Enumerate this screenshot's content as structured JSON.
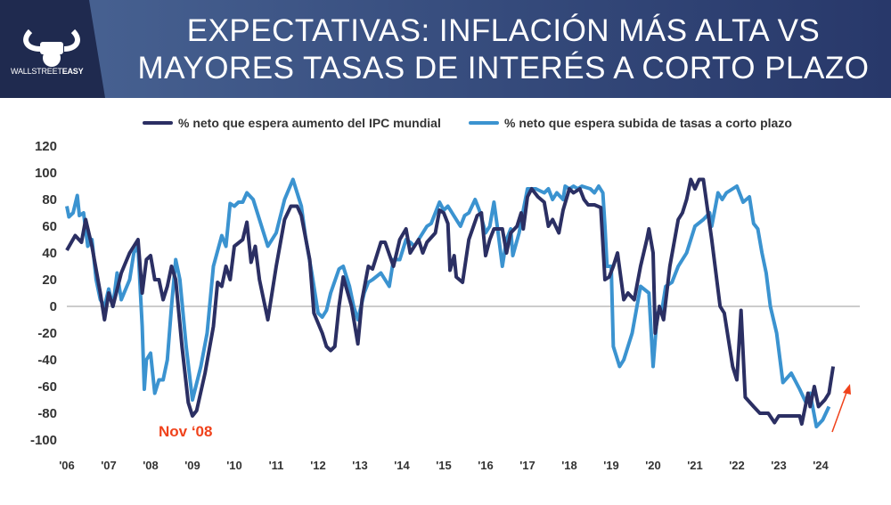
{
  "header": {
    "title_line1": "EXPECTATIVAS: INFLACIÓN MÁS ALTA VS",
    "title_line2": "MAYORES TASAS DE INTERÉS A CORTO PLAZO",
    "logo_text_light": "WALLSTREET",
    "logo_text_bold": "EASY"
  },
  "colors": {
    "ipc": "#2b2f63",
    "tasas": "#3b93d0",
    "annotation": "#f0421b"
  },
  "chart_data": {
    "type": "line",
    "title": "EXPECTATIVAS: INFLACIÓN MÁS ALTA VS MAYORES TASAS DE INTERÉS A CORTO PLAZO",
    "xlabel": "",
    "ylabel": "",
    "ylim": [
      -100,
      120
    ],
    "xlim": [
      2006,
      2025
    ],
    "yticks": [
      "120",
      "100",
      "80",
      "60",
      "40",
      "20",
      "0",
      "-20",
      "-40",
      "-60",
      "-80",
      "-100"
    ],
    "xticks": [
      "'06",
      "'07",
      "'08",
      "'09",
      "'10",
      "'11",
      "'12",
      "'13",
      "'14",
      "'15",
      "'16",
      "'17",
      "'18",
      "'19",
      "'20",
      "'21",
      "'22",
      "'23",
      "'24"
    ],
    "annotation": "Nov ‘08",
    "legend_position": "top",
    "series": [
      {
        "name": "% neto que espera aumento del IPC mundial",
        "points": [
          [
            2006.0,
            42
          ],
          [
            2006.2,
            53
          ],
          [
            2006.35,
            48
          ],
          [
            2006.45,
            65
          ],
          [
            2006.6,
            45
          ],
          [
            2006.8,
            10
          ],
          [
            2006.9,
            -10
          ],
          [
            2007.0,
            10
          ],
          [
            2007.1,
            0
          ],
          [
            2007.3,
            25
          ],
          [
            2007.5,
            40
          ],
          [
            2007.7,
            50
          ],
          [
            2007.8,
            10
          ],
          [
            2007.9,
            35
          ],
          [
            2008.0,
            38
          ],
          [
            2008.1,
            20
          ],
          [
            2008.2,
            20
          ],
          [
            2008.3,
            5
          ],
          [
            2008.4,
            15
          ],
          [
            2008.5,
            30
          ],
          [
            2008.6,
            20
          ],
          [
            2008.75,
            -30
          ],
          [
            2008.9,
            -72
          ],
          [
            2009.0,
            -82
          ],
          [
            2009.1,
            -78
          ],
          [
            2009.3,
            -50
          ],
          [
            2009.5,
            -15
          ],
          [
            2009.6,
            18
          ],
          [
            2009.7,
            15
          ],
          [
            2009.8,
            30
          ],
          [
            2009.9,
            20
          ],
          [
            2010.0,
            45
          ],
          [
            2010.2,
            50
          ],
          [
            2010.3,
            63
          ],
          [
            2010.4,
            33
          ],
          [
            2010.5,
            45
          ],
          [
            2010.6,
            20
          ],
          [
            2010.8,
            -10
          ],
          [
            2011.0,
            30
          ],
          [
            2011.2,
            65
          ],
          [
            2011.35,
            75
          ],
          [
            2011.5,
            75
          ],
          [
            2011.6,
            68
          ],
          [
            2011.8,
            35
          ],
          [
            2011.9,
            -5
          ],
          [
            2012.1,
            -20
          ],
          [
            2012.2,
            -30
          ],
          [
            2012.3,
            -33
          ],
          [
            2012.4,
            -30
          ],
          [
            2012.5,
            0
          ],
          [
            2012.6,
            22
          ],
          [
            2012.8,
            0
          ],
          [
            2012.95,
            -28
          ],
          [
            2013.05,
            5
          ],
          [
            2013.2,
            30
          ],
          [
            2013.3,
            28
          ],
          [
            2013.5,
            48
          ],
          [
            2013.6,
            48
          ],
          [
            2013.8,
            30
          ],
          [
            2013.95,
            50
          ],
          [
            2014.1,
            58
          ],
          [
            2014.2,
            40
          ],
          [
            2014.4,
            50
          ],
          [
            2014.5,
            40
          ],
          [
            2014.6,
            48
          ],
          [
            2014.8,
            55
          ],
          [
            2014.9,
            72
          ],
          [
            2015.0,
            70
          ],
          [
            2015.1,
            62
          ],
          [
            2015.15,
            27
          ],
          [
            2015.25,
            38
          ],
          [
            2015.3,
            22
          ],
          [
            2015.45,
            18
          ],
          [
            2015.6,
            50
          ],
          [
            2015.8,
            68
          ],
          [
            2015.9,
            70
          ],
          [
            2016.0,
            38
          ],
          [
            2016.1,
            50
          ],
          [
            2016.2,
            58
          ],
          [
            2016.4,
            58
          ],
          [
            2016.5,
            40
          ],
          [
            2016.6,
            55
          ],
          [
            2016.75,
            60
          ],
          [
            2016.85,
            70
          ],
          [
            2016.9,
            58
          ],
          [
            2017.0,
            82
          ],
          [
            2017.1,
            88
          ],
          [
            2017.25,
            82
          ],
          [
            2017.4,
            78
          ],
          [
            2017.5,
            60
          ],
          [
            2017.6,
            65
          ],
          [
            2017.75,
            55
          ],
          [
            2017.85,
            72
          ],
          [
            2018.0,
            88
          ],
          [
            2018.1,
            85
          ],
          [
            2018.25,
            88
          ],
          [
            2018.35,
            80
          ],
          [
            2018.45,
            76
          ],
          [
            2018.6,
            76
          ],
          [
            2018.75,
            74
          ],
          [
            2018.85,
            20
          ],
          [
            2018.95,
            22
          ],
          [
            2019.05,
            30
          ],
          [
            2019.15,
            40
          ],
          [
            2019.3,
            5
          ],
          [
            2019.4,
            10
          ],
          [
            2019.55,
            5
          ],
          [
            2019.7,
            30
          ],
          [
            2019.85,
            50
          ],
          [
            2019.9,
            58
          ],
          [
            2020.0,
            40
          ],
          [
            2020.05,
            -20
          ],
          [
            2020.15,
            0
          ],
          [
            2020.25,
            -10
          ],
          [
            2020.4,
            30
          ],
          [
            2020.6,
            65
          ],
          [
            2020.7,
            70
          ],
          [
            2020.8,
            80
          ],
          [
            2020.9,
            95
          ],
          [
            2021.0,
            88
          ],
          [
            2021.1,
            95
          ],
          [
            2021.2,
            95
          ],
          [
            2021.4,
            50
          ],
          [
            2021.6,
            0
          ],
          [
            2021.7,
            -5
          ],
          [
            2021.9,
            -45
          ],
          [
            2022.0,
            -55
          ],
          [
            2022.1,
            -3
          ],
          [
            2022.2,
            -68
          ],
          [
            2022.4,
            -75
          ],
          [
            2022.55,
            -80
          ],
          [
            2022.75,
            -80
          ],
          [
            2022.9,
            -87
          ],
          [
            2023.0,
            -82
          ],
          [
            2023.3,
            -82
          ],
          [
            2023.5,
            -82
          ],
          [
            2023.55,
            -88
          ],
          [
            2023.7,
            -65
          ],
          [
            2023.75,
            -75
          ],
          [
            2023.85,
            -60
          ],
          [
            2023.95,
            -75
          ],
          [
            2024.1,
            -70
          ],
          [
            2024.2,
            -65
          ],
          [
            2024.3,
            -45
          ]
        ]
      },
      {
        "name": "% neto que espera subida de tasas a corto plazo",
        "points": [
          [
            2006.0,
            75
          ],
          [
            2006.05,
            67
          ],
          [
            2006.15,
            70
          ],
          [
            2006.25,
            83
          ],
          [
            2006.3,
            68
          ],
          [
            2006.4,
            70
          ],
          [
            2006.5,
            45
          ],
          [
            2006.6,
            50
          ],
          [
            2006.7,
            20
          ],
          [
            2006.8,
            5
          ],
          [
            2006.9,
            0
          ],
          [
            2007.0,
            13
          ],
          [
            2007.1,
            0
          ],
          [
            2007.2,
            25
          ],
          [
            2007.3,
            5
          ],
          [
            2007.5,
            20
          ],
          [
            2007.6,
            40
          ],
          [
            2007.7,
            45
          ],
          [
            2007.8,
            -15
          ],
          [
            2007.85,
            -62
          ],
          [
            2007.9,
            -40
          ],
          [
            2008.0,
            -35
          ],
          [
            2008.1,
            -65
          ],
          [
            2008.2,
            -55
          ],
          [
            2008.3,
            -55
          ],
          [
            2008.4,
            -40
          ],
          [
            2008.5,
            0
          ],
          [
            2008.6,
            35
          ],
          [
            2008.7,
            20
          ],
          [
            2008.85,
            -30
          ],
          [
            2009.0,
            -70
          ],
          [
            2009.2,
            -45
          ],
          [
            2009.35,
            -20
          ],
          [
            2009.5,
            30
          ],
          [
            2009.7,
            53
          ],
          [
            2009.8,
            45
          ],
          [
            2009.9,
            77
          ],
          [
            2010.0,
            75
          ],
          [
            2010.1,
            78
          ],
          [
            2010.2,
            78
          ],
          [
            2010.3,
            85
          ],
          [
            2010.45,
            80
          ],
          [
            2010.6,
            65
          ],
          [
            2010.8,
            45
          ],
          [
            2011.0,
            55
          ],
          [
            2011.2,
            80
          ],
          [
            2011.4,
            95
          ],
          [
            2011.5,
            85
          ],
          [
            2011.6,
            75
          ],
          [
            2011.7,
            52
          ],
          [
            2011.85,
            25
          ],
          [
            2012.0,
            -5
          ],
          [
            2012.1,
            -8
          ],
          [
            2012.2,
            -3
          ],
          [
            2012.3,
            10
          ],
          [
            2012.5,
            28
          ],
          [
            2012.6,
            30
          ],
          [
            2012.75,
            15
          ],
          [
            2012.85,
            0
          ],
          [
            2012.95,
            -10
          ],
          [
            2013.1,
            10
          ],
          [
            2013.2,
            18
          ],
          [
            2013.3,
            20
          ],
          [
            2013.5,
            25
          ],
          [
            2013.6,
            20
          ],
          [
            2013.7,
            15
          ],
          [
            2013.8,
            35
          ],
          [
            2013.95,
            35
          ],
          [
            2014.1,
            50
          ],
          [
            2014.2,
            48
          ],
          [
            2014.3,
            45
          ],
          [
            2014.5,
            55
          ],
          [
            2014.6,
            60
          ],
          [
            2014.7,
            62
          ],
          [
            2014.8,
            70
          ],
          [
            2014.9,
            78
          ],
          [
            2015.0,
            72
          ],
          [
            2015.1,
            75
          ],
          [
            2015.2,
            70
          ],
          [
            2015.4,
            60
          ],
          [
            2015.5,
            68
          ],
          [
            2015.6,
            70
          ],
          [
            2015.75,
            80
          ],
          [
            2015.85,
            72
          ],
          [
            2016.0,
            55
          ],
          [
            2016.1,
            60
          ],
          [
            2016.2,
            78
          ],
          [
            2016.3,
            55
          ],
          [
            2016.4,
            30
          ],
          [
            2016.5,
            50
          ],
          [
            2016.6,
            58
          ],
          [
            2016.65,
            38
          ],
          [
            2016.8,
            55
          ],
          [
            2016.9,
            72
          ],
          [
            2017.0,
            88
          ],
          [
            2017.2,
            88
          ],
          [
            2017.4,
            85
          ],
          [
            2017.5,
            88
          ],
          [
            2017.6,
            80
          ],
          [
            2017.7,
            85
          ],
          [
            2017.85,
            80
          ],
          [
            2017.9,
            90
          ],
          [
            2018.0,
            88
          ],
          [
            2018.1,
            90
          ],
          [
            2018.2,
            88
          ],
          [
            2018.3,
            90
          ],
          [
            2018.5,
            88
          ],
          [
            2018.6,
            85
          ],
          [
            2018.7,
            90
          ],
          [
            2018.8,
            85
          ],
          [
            2018.85,
            60
          ],
          [
            2018.9,
            30
          ],
          [
            2019.0,
            30
          ],
          [
            2019.05,
            -30
          ],
          [
            2019.2,
            -45
          ],
          [
            2019.3,
            -40
          ],
          [
            2019.5,
            -20
          ],
          [
            2019.7,
            15
          ],
          [
            2019.9,
            10
          ],
          [
            2020.0,
            -45
          ],
          [
            2020.1,
            -5
          ],
          [
            2020.2,
            -5
          ],
          [
            2020.3,
            15
          ],
          [
            2020.45,
            18
          ],
          [
            2020.6,
            30
          ],
          [
            2020.8,
            40
          ],
          [
            2020.9,
            50
          ],
          [
            2021.0,
            60
          ],
          [
            2021.2,
            65
          ],
          [
            2021.35,
            70
          ],
          [
            2021.4,
            60
          ],
          [
            2021.55,
            85
          ],
          [
            2021.65,
            80
          ],
          [
            2021.75,
            85
          ],
          [
            2021.9,
            88
          ],
          [
            2022.0,
            90
          ],
          [
            2022.15,
            78
          ],
          [
            2022.3,
            82
          ],
          [
            2022.4,
            62
          ],
          [
            2022.5,
            58
          ],
          [
            2022.6,
            40
          ],
          [
            2022.7,
            25
          ],
          [
            2022.8,
            0
          ],
          [
            2022.95,
            -20
          ],
          [
            2023.1,
            -57
          ],
          [
            2023.3,
            -50
          ],
          [
            2023.5,
            -62
          ],
          [
            2023.65,
            -72
          ],
          [
            2023.75,
            -65
          ],
          [
            2023.9,
            -90
          ],
          [
            2024.05,
            -85
          ],
          [
            2024.2,
            -75
          ]
        ]
      }
    ]
  }
}
